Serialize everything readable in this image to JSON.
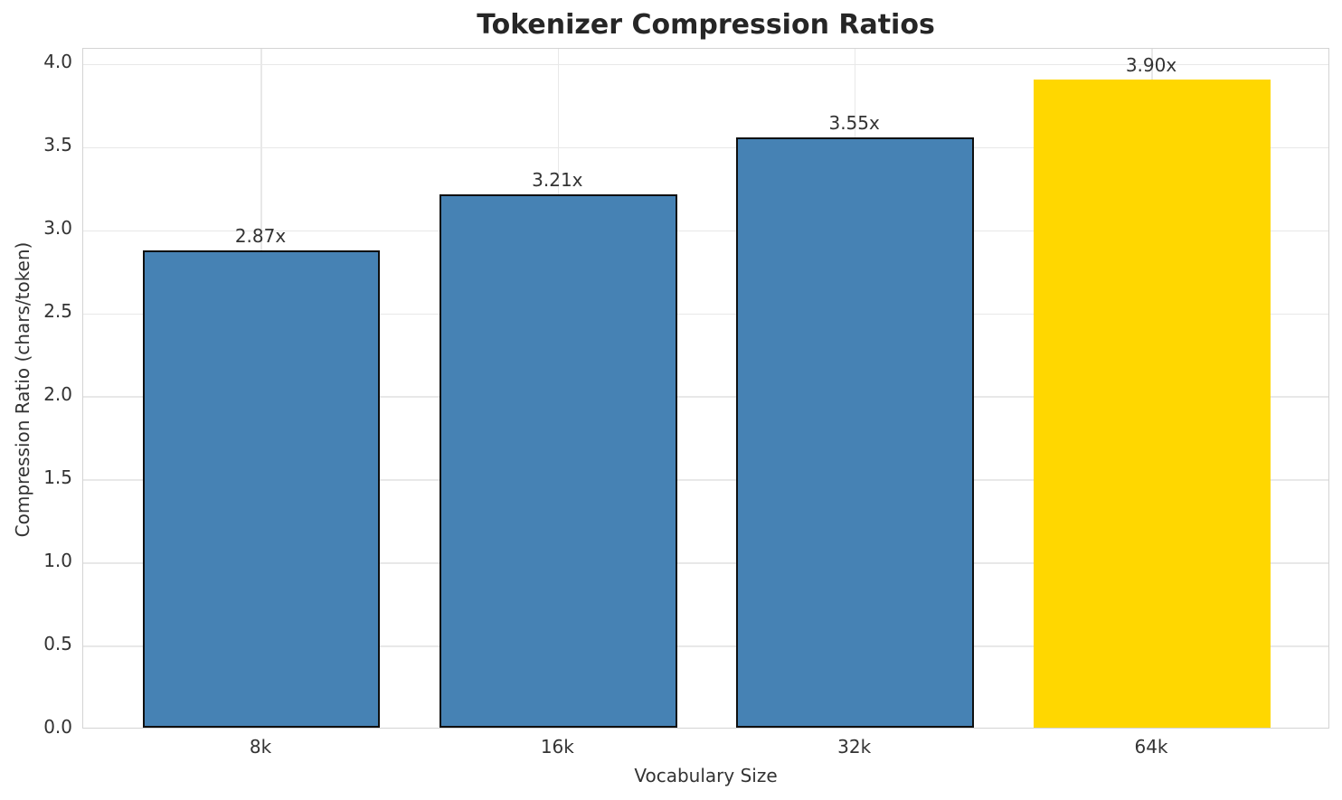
{
  "chart_data": {
    "type": "bar",
    "title": "Tokenizer Compression Ratios",
    "xlabel": "Vocabulary Size",
    "ylabel": "Compression Ratio (chars/token)",
    "categories": [
      "8k",
      "16k",
      "32k",
      "64k"
    ],
    "values": [
      2.87,
      3.21,
      3.55,
      3.9
    ],
    "bar_labels": [
      "2.87x",
      "3.21x",
      "3.55x",
      "3.90x"
    ],
    "ylim": [
      0,
      4.095
    ],
    "yticks": [
      0.0,
      0.5,
      1.0,
      1.5,
      2.0,
      2.5,
      3.0,
      3.5,
      4.0
    ],
    "ytick_labels": [
      "0.0",
      "0.5",
      "1.0",
      "1.5",
      "2.0",
      "2.5",
      "3.0",
      "3.5",
      "4.0"
    ],
    "grid": true,
    "legend_position": "none",
    "bar_width_fraction": 0.8,
    "x_margin_units": 0.6,
    "bar_colors": [
      "#4682B4",
      "#4682B4",
      "#4682B4",
      "#FFD700"
    ],
    "bar_edge_colors": [
      "#0f0f0f",
      "#0f0f0f",
      "#0f0f0f",
      "none"
    ],
    "colors": {
      "grid": "#e8e8e8",
      "spine": "#d4d4d4",
      "title": "#262626",
      "tick": "#333333",
      "highlight": "#FFD700",
      "primary": "#4682B4"
    }
  }
}
